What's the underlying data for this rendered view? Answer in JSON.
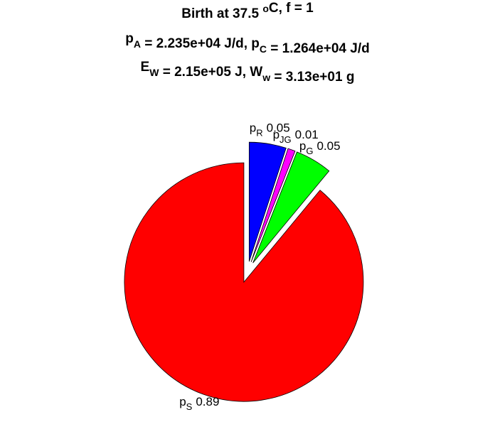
{
  "chart_data": {
    "type": "pie",
    "title": [
      [
        {
          "text": "Birth at 37.5 "
        },
        {
          "sup": "o"
        },
        {
          "text": "C, f = 1"
        }
      ],
      [
        {
          "text": "p"
        },
        {
          "sub": "A"
        },
        {
          "text": " = 2.235e+04 J/d, p"
        },
        {
          "sub": "C"
        },
        {
          "text": " = 1.264e+04 J/d"
        }
      ],
      [
        {
          "text": "E"
        },
        {
          "sub": "W"
        },
        {
          "text": " = 2.15e+05 J, W"
        },
        {
          "sub": "w"
        },
        {
          "text": " = 3.13e+01 g"
        }
      ]
    ],
    "labels": [
      {
        "text": "p",
        "sub": "R"
      },
      {
        "text": "p",
        "sub": "JG"
      },
      {
        "text": "p",
        "sub": "G"
      },
      {
        "text": "p",
        "sub": "S"
      }
    ],
    "values": [
      0.05,
      0.01,
      0.05,
      0.89
    ],
    "colors": [
      "#0000ff",
      "#ff00ff",
      "#00ff00",
      "#ff0000"
    ],
    "explode": true
  }
}
